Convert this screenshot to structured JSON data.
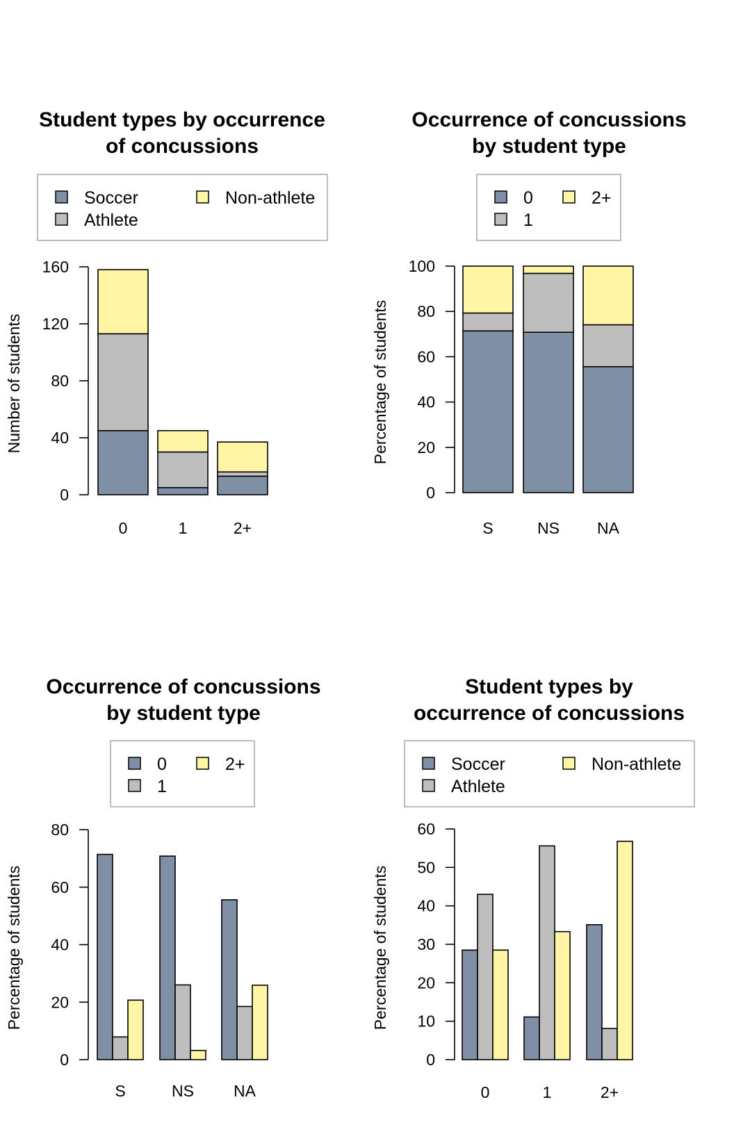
{
  "colors": {
    "soccer": "#7f8fa6",
    "athlete": "#bebebe",
    "nonathlete": "#fff5a5",
    "c0": "#7f8fa6",
    "c1": "#bebebe",
    "c2": "#fff5a5"
  },
  "chart_data": [
    {
      "type": "bar",
      "stacked": true,
      "title": [
        "Student types by occurrence",
        "of concussions"
      ],
      "xlabel": "",
      "ylabel": "Number of students",
      "categories": [
        "0",
        "1",
        "2+"
      ],
      "ylim": [
        0,
        160
      ],
      "yticks": [
        "0",
        "40",
        "80",
        "120",
        "160"
      ],
      "legend": [
        "Soccer",
        "Athlete",
        "Non-athlete"
      ],
      "series": [
        {
          "name": "Soccer",
          "values": [
            45,
            5,
            13
          ]
        },
        {
          "name": "Athlete",
          "values": [
            68,
            25,
            3
          ]
        },
        {
          "name": "Non-athlete",
          "values": [
            45,
            15,
            21
          ]
        }
      ]
    },
    {
      "type": "bar",
      "stacked": true,
      "title": [
        "Occurrence of concussions",
        "by student type"
      ],
      "xlabel": "",
      "ylabel": "Percentage of students",
      "categories": [
        "S",
        "NS",
        "NA"
      ],
      "ylim": [
        0,
        100
      ],
      "yticks": [
        "0",
        "20",
        "40",
        "60",
        "80",
        "100"
      ],
      "legend": [
        "0",
        "1",
        "2+"
      ],
      "series": [
        {
          "name": "0",
          "values": [
            71.4,
            70.8,
            55.6
          ]
        },
        {
          "name": "1",
          "values": [
            7.9,
            26.0,
            18.5
          ]
        },
        {
          "name": "2+",
          "values": [
            20.7,
            3.2,
            25.9
          ]
        }
      ]
    },
    {
      "type": "bar",
      "stacked": false,
      "title": [
        "Occurrence of concussions",
        "by student type"
      ],
      "xlabel": "",
      "ylabel": "Percentage of students",
      "categories": [
        "S",
        "NS",
        "NA"
      ],
      "ylim": [
        0,
        80
      ],
      "yticks": [
        "0",
        "20",
        "40",
        "60",
        "80"
      ],
      "legend": [
        "0",
        "1",
        "2+"
      ],
      "series": [
        {
          "name": "0",
          "values": [
            71.4,
            70.8,
            55.6
          ]
        },
        {
          "name": "1",
          "values": [
            7.9,
            26.0,
            18.5
          ]
        },
        {
          "name": "2+",
          "values": [
            20.7,
            3.2,
            25.9
          ]
        }
      ]
    },
    {
      "type": "bar",
      "stacked": false,
      "title": [
        "Student types by",
        "occurrence of concussions"
      ],
      "xlabel": "",
      "ylabel": "Percentage of students",
      "categories": [
        "0",
        "1",
        "2+"
      ],
      "ylim": [
        0,
        60
      ],
      "yticks": [
        "0",
        "10",
        "20",
        "30",
        "40",
        "50",
        "60"
      ],
      "legend": [
        "Soccer",
        "Athlete",
        "Non-athlete"
      ],
      "series": [
        {
          "name": "Soccer",
          "values": [
            28.5,
            11.1,
            35.1
          ]
        },
        {
          "name": "Athlete",
          "values": [
            43.0,
            55.6,
            8.1
          ]
        },
        {
          "name": "Non-athlete",
          "values": [
            28.5,
            33.3,
            56.8
          ]
        }
      ]
    }
  ]
}
